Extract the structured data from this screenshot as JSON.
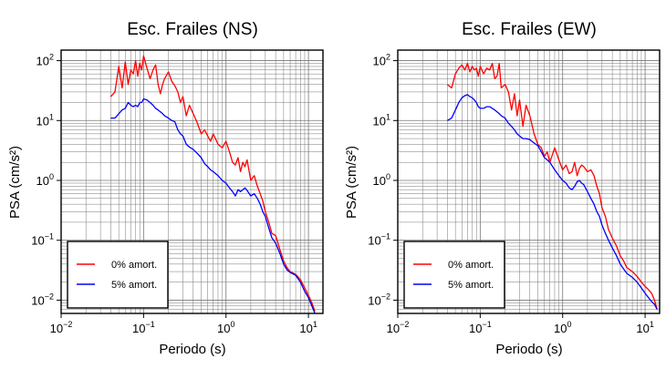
{
  "chart_data": [
    {
      "type": "line",
      "title": "Esc. Frailes (NS)",
      "xlabel": "Periodo (s)",
      "ylabel": "PSA (cm/s²)",
      "xscale": "log",
      "yscale": "log",
      "xlim": [
        0.01,
        15
      ],
      "ylim": [
        0.006,
        150
      ],
      "grid": true,
      "legend_position": "bottom-left",
      "x_ticks": [
        {
          "v": 0.01,
          "base": "10",
          "exp": "−2"
        },
        {
          "v": 0.1,
          "base": "10",
          "exp": "−1"
        },
        {
          "v": 1,
          "base": "10",
          "exp": "0"
        },
        {
          "v": 10,
          "base": "10",
          "exp": "1"
        }
      ],
      "y_ticks": [
        {
          "v": 0.01,
          "base": "10",
          "exp": "−2"
        },
        {
          "v": 0.1,
          "base": "10",
          "exp": "−1"
        },
        {
          "v": 1,
          "base": "10",
          "exp": "0"
        },
        {
          "v": 10,
          "base": "10",
          "exp": "1"
        },
        {
          "v": 100,
          "base": "10",
          "exp": "2"
        }
      ],
      "series": [
        {
          "name": "0% amort.",
          "color": "#ff0000",
          "x": [
            0.04,
            0.045,
            0.05,
            0.055,
            0.06,
            0.065,
            0.07,
            0.075,
            0.08,
            0.085,
            0.09,
            0.095,
            0.1,
            0.11,
            0.12,
            0.13,
            0.14,
            0.15,
            0.16,
            0.17,
            0.18,
            0.2,
            0.22,
            0.24,
            0.26,
            0.28,
            0.3,
            0.33,
            0.36,
            0.4,
            0.45,
            0.5,
            0.55,
            0.6,
            0.65,
            0.7,
            0.8,
            0.9,
            1.0,
            1.1,
            1.2,
            1.3,
            1.4,
            1.5,
            1.6,
            1.7,
            1.8,
            2.0,
            2.2,
            2.4,
            2.6,
            2.8,
            3.0,
            3.3,
            3.6,
            4.0,
            4.5,
            5.0,
            5.5,
            6.0,
            7.0,
            8.0,
            9.0,
            10.0,
            11.0,
            12.0
          ],
          "y": [
            25,
            30,
            80,
            35,
            95,
            40,
            70,
            60,
            100,
            55,
            90,
            70,
            120,
            75,
            50,
            70,
            85,
            40,
            28,
            40,
            50,
            65,
            45,
            38,
            30,
            20,
            25,
            12,
            18,
            13,
            9,
            6,
            7,
            5.5,
            4.5,
            6,
            4,
            3.5,
            4.5,
            3,
            2,
            1.8,
            2.4,
            1.4,
            2.0,
            1.7,
            2.2,
            1.0,
            1.2,
            0.8,
            0.6,
            0.45,
            0.3,
            0.2,
            0.13,
            0.12,
            0.07,
            0.045,
            0.035,
            0.03,
            0.027,
            0.022,
            0.016,
            0.012,
            0.009,
            0.0065
          ]
        },
        {
          "name": "5% amort.",
          "color": "#0000ff",
          "x": [
            0.04,
            0.045,
            0.05,
            0.055,
            0.06,
            0.065,
            0.07,
            0.075,
            0.08,
            0.085,
            0.09,
            0.095,
            0.1,
            0.11,
            0.12,
            0.13,
            0.14,
            0.15,
            0.16,
            0.17,
            0.18,
            0.2,
            0.22,
            0.24,
            0.26,
            0.28,
            0.3,
            0.33,
            0.36,
            0.4,
            0.45,
            0.5,
            0.55,
            0.6,
            0.65,
            0.7,
            0.8,
            0.9,
            1.0,
            1.1,
            1.2,
            1.3,
            1.4,
            1.5,
            1.6,
            1.7,
            1.8,
            2.0,
            2.2,
            2.4,
            2.6,
            2.8,
            3.0,
            3.3,
            3.6,
            4.0,
            4.5,
            5.0,
            5.5,
            6.0,
            7.0,
            8.0,
            9.0,
            10.0,
            11.0,
            12.0
          ],
          "y": [
            11,
            11,
            13,
            15,
            16,
            20,
            18,
            17,
            18,
            17,
            20,
            20,
            23,
            22,
            20,
            18,
            16,
            15,
            14,
            13,
            12,
            11,
            10,
            9.5,
            7,
            6,
            5.5,
            4,
            3.6,
            3.3,
            2.8,
            2.4,
            1.9,
            1.7,
            1.5,
            1.4,
            1.2,
            1.0,
            0.9,
            0.75,
            0.65,
            0.55,
            0.7,
            0.65,
            0.7,
            0.75,
            0.68,
            0.55,
            0.6,
            0.5,
            0.4,
            0.3,
            0.25,
            0.16,
            0.11,
            0.09,
            0.06,
            0.04,
            0.032,
            0.029,
            0.026,
            0.02,
            0.014,
            0.011,
            0.008,
            0.006
          ]
        }
      ]
    },
    {
      "type": "line",
      "title": "Esc. Frailes (EW)",
      "xlabel": "Periodo (s)",
      "ylabel": "PSA (cm/s²)",
      "xscale": "log",
      "yscale": "log",
      "xlim": [
        0.01,
        15
      ],
      "ylim": [
        0.006,
        150
      ],
      "grid": true,
      "legend_position": "bottom-left",
      "x_ticks": [
        {
          "v": 0.01,
          "base": "10",
          "exp": "−2"
        },
        {
          "v": 0.1,
          "base": "10",
          "exp": "−1"
        },
        {
          "v": 1,
          "base": "10",
          "exp": "0"
        },
        {
          "v": 10,
          "base": "10",
          "exp": "1"
        }
      ],
      "y_ticks": [
        {
          "v": 0.01,
          "base": "10",
          "exp": "−2"
        },
        {
          "v": 0.1,
          "base": "10",
          "exp": "−1"
        },
        {
          "v": 1,
          "base": "10",
          "exp": "0"
        },
        {
          "v": 10,
          "base": "10",
          "exp": "1"
        },
        {
          "v": 100,
          "base": "10",
          "exp": "2"
        }
      ],
      "series": [
        {
          "name": "0% amort.",
          "color": "#ff0000",
          "x": [
            0.04,
            0.045,
            0.05,
            0.055,
            0.06,
            0.065,
            0.07,
            0.075,
            0.08,
            0.085,
            0.09,
            0.095,
            0.1,
            0.11,
            0.12,
            0.13,
            0.14,
            0.15,
            0.16,
            0.17,
            0.18,
            0.2,
            0.22,
            0.24,
            0.26,
            0.28,
            0.3,
            0.33,
            0.36,
            0.4,
            0.45,
            0.5,
            0.55,
            0.6,
            0.65,
            0.7,
            0.8,
            0.9,
            1.0,
            1.1,
            1.2,
            1.3,
            1.4,
            1.5,
            1.6,
            1.7,
            1.8,
            2.0,
            2.2,
            2.4,
            2.6,
            2.8,
            3.0,
            3.3,
            3.6,
            4.0,
            4.5,
            5.0,
            5.5,
            6.0,
            7.0,
            8.0,
            9.0,
            10.0,
            11.0,
            12.0,
            13.0,
            14.0
          ],
          "y": [
            40,
            35,
            60,
            75,
            85,
            70,
            90,
            65,
            80,
            70,
            75,
            55,
            80,
            60,
            75,
            70,
            90,
            50,
            55,
            90,
            35,
            40,
            30,
            15,
            28,
            12,
            22,
            8,
            18,
            12,
            6,
            4,
            3.5,
            2.5,
            3.0,
            2.0,
            3.5,
            2.2,
            1.5,
            1.8,
            1.3,
            1.4,
            2.0,
            1.2,
            1.6,
            1.8,
            1.7,
            1.4,
            1.5,
            1.2,
            0.8,
            0.6,
            0.35,
            0.25,
            0.15,
            0.11,
            0.08,
            0.055,
            0.045,
            0.035,
            0.03,
            0.025,
            0.02,
            0.017,
            0.015,
            0.013,
            0.01,
            0.007
          ]
        },
        {
          "name": "5% amort.",
          "color": "#0000ff",
          "x": [
            0.04,
            0.045,
            0.05,
            0.055,
            0.06,
            0.065,
            0.07,
            0.075,
            0.08,
            0.085,
            0.09,
            0.095,
            0.1,
            0.11,
            0.12,
            0.13,
            0.14,
            0.15,
            0.16,
            0.17,
            0.18,
            0.2,
            0.22,
            0.24,
            0.26,
            0.28,
            0.3,
            0.33,
            0.36,
            0.4,
            0.45,
            0.5,
            0.55,
            0.6,
            0.65,
            0.7,
            0.8,
            0.9,
            1.0,
            1.1,
            1.2,
            1.3,
            1.4,
            1.5,
            1.6,
            1.7,
            1.8,
            2.0,
            2.2,
            2.4,
            2.6,
            2.8,
            3.0,
            3.3,
            3.6,
            4.0,
            4.5,
            5.0,
            5.5,
            6.0,
            7.0,
            8.0,
            9.0,
            10.0,
            11.0,
            12.0,
            13.0,
            14.0
          ],
          "y": [
            10,
            11,
            15,
            20,
            24,
            26,
            27,
            25,
            24,
            22,
            20,
            17,
            16,
            16,
            17,
            17,
            16,
            15,
            14,
            13,
            12,
            11,
            9,
            8,
            7,
            6,
            5.5,
            5.0,
            5.0,
            4.8,
            4.2,
            3.8,
            3.0,
            2.4,
            2.2,
            2.0,
            1.5,
            1.2,
            1.0,
            0.9,
            0.75,
            0.7,
            0.8,
            0.95,
            1.0,
            0.9,
            0.85,
            0.65,
            0.5,
            0.4,
            0.3,
            0.25,
            0.18,
            0.13,
            0.1,
            0.075,
            0.055,
            0.04,
            0.033,
            0.028,
            0.024,
            0.02,
            0.016,
            0.013,
            0.011,
            0.0095,
            0.0085,
            0.007
          ]
        }
      ]
    }
  ]
}
